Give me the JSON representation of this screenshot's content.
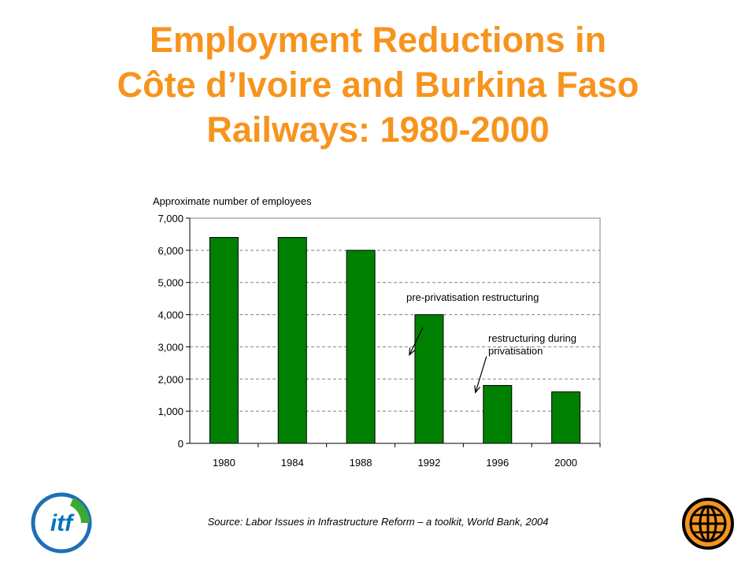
{
  "slide": {
    "title_lines": [
      "Employment Reductions in",
      "Côte d’Ivoire and Burkina Faso",
      "Railways: 1980-2000"
    ],
    "source": "Source: Labor Issues in Infrastructure Reform – a toolkit, World Bank, 2004",
    "title_color": "#F7941D",
    "logo_left_text": "itf",
    "logo_left_color": "#0072BC",
    "logo_left_accent": "#3AAA35",
    "logo_right_icon": "globe-icon"
  },
  "chart_data": {
    "type": "bar",
    "title": "",
    "ylabel": "Approximate number of employees",
    "xlabel": "",
    "categories": [
      "1980",
      "1984",
      "1988",
      "1992",
      "1996",
      "2000"
    ],
    "values": [
      6400,
      6400,
      6000,
      4000,
      1800,
      1600
    ],
    "ylim": [
      0,
      7000
    ],
    "yticks": [
      0,
      1000,
      2000,
      3000,
      4000,
      5000,
      6000,
      7000
    ],
    "ytick_labels": [
      "0",
      "1,000",
      "2,000",
      "3,000",
      "4,000",
      "5,000",
      "6,000",
      "7,000"
    ],
    "grid": true,
    "bar_color": "#008000",
    "annotations": [
      {
        "lines": [
          "pre-privatisation restructuring"
        ],
        "points_to": "1992"
      },
      {
        "lines": [
          "restructuring during",
          "privatisation"
        ],
        "points_to": "1996"
      }
    ]
  }
}
